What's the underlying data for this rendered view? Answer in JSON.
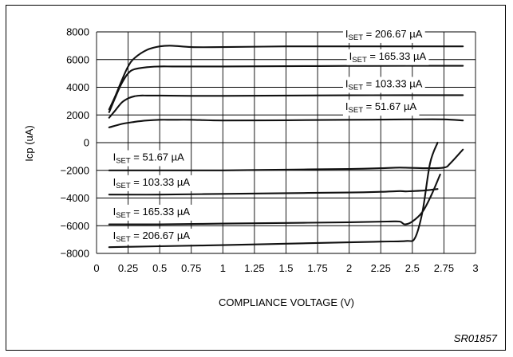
{
  "chart_data": {
    "type": "line",
    "title": "",
    "xlabel": "COMPLIANCE VOLTAGE (V)",
    "ylabel": "Icp (uA)",
    "xlim": [
      0,
      3
    ],
    "ylim": [
      -8000,
      8000
    ],
    "x_ticks": [
      "0",
      "0.25",
      "0.5",
      "0.75",
      "1",
      "1.25",
      "1.5",
      "1.75",
      "2",
      "2.25",
      "2.5",
      "2.75",
      "3"
    ],
    "y_ticks": [
      "8000",
      "6000",
      "4000",
      "2000",
      "0",
      "−2000",
      "−4000",
      "−6000",
      "−8000"
    ],
    "grid": true,
    "figure_code": "SR01857",
    "series": [
      {
        "name": "ISET = 206.67 µA",
        "x": [
          0.1,
          0.15,
          0.2,
          0.25,
          0.3,
          0.4,
          0.5,
          0.6,
          0.75,
          1.0,
          1.5,
          2.0,
          2.5,
          2.9
        ],
        "y": [
          2400,
          3400,
          4500,
          5500,
          6100,
          6700,
          6950,
          7000,
          6900,
          6900,
          6950,
          6950,
          6950,
          6950
        ]
      },
      {
        "name": "ISET = 165.33 µA",
        "x": [
          0.1,
          0.15,
          0.2,
          0.25,
          0.3,
          0.4,
          0.5,
          0.6,
          0.75,
          1.0,
          1.5,
          2.0,
          2.5,
          2.9
        ],
        "y": [
          2200,
          3300,
          4300,
          5000,
          5300,
          5450,
          5500,
          5500,
          5500,
          5500,
          5520,
          5540,
          5550,
          5550
        ]
      },
      {
        "name": "ISET = 103.33 µA",
        "x": [
          0.1,
          0.15,
          0.2,
          0.25,
          0.3,
          0.35,
          0.4,
          0.5,
          0.75,
          1.0,
          1.5,
          2.0,
          2.5,
          2.9
        ],
        "y": [
          1800,
          2350,
          2900,
          3200,
          3350,
          3400,
          3400,
          3400,
          3380,
          3380,
          3400,
          3420,
          3430,
          3430
        ]
      },
      {
        "name": "ISET = 51.67 µA",
        "x": [
          0.1,
          0.2,
          0.3,
          0.4,
          0.5,
          0.6,
          0.75,
          1.0,
          1.5,
          2.0,
          2.5,
          2.75,
          2.9
        ],
        "y": [
          1100,
          1350,
          1500,
          1600,
          1650,
          1650,
          1650,
          1600,
          1620,
          1650,
          1680,
          1680,
          1600
        ]
      },
      {
        "name": "ISET = 51.67 µA",
        "x": [
          0.1,
          0.5,
          1.0,
          1.5,
          2.0,
          2.25,
          2.4,
          2.6,
          2.75,
          2.8,
          2.9
        ],
        "y": [
          -2000,
          -2000,
          -2000,
          -1950,
          -1900,
          -1850,
          -1800,
          -1850,
          -1800,
          -1500,
          -500
        ]
      },
      {
        "name": "ISET = 103.33 µA",
        "x": [
          0.1,
          0.5,
          1.0,
          1.5,
          2.0,
          2.25,
          2.4,
          2.45,
          2.5,
          2.6,
          2.7
        ],
        "y": [
          -3750,
          -3750,
          -3700,
          -3650,
          -3600,
          -3550,
          -3500,
          -3520,
          -3500,
          -3450,
          -3350
        ]
      },
      {
        "name": "ISET = 165.33 µA",
        "x": [
          0.1,
          0.5,
          1.0,
          1.5,
          2.0,
          2.3,
          2.4,
          2.44,
          2.5,
          2.58,
          2.65,
          2.72
        ],
        "y": [
          -5900,
          -5900,
          -5850,
          -5800,
          -5750,
          -5700,
          -5700,
          -5900,
          -5700,
          -5000,
          -3800,
          -2300
        ]
      },
      {
        "name": "ISET = 206.67 µA",
        "x": [
          0.1,
          0.25,
          0.5,
          1.0,
          1.5,
          2.0,
          2.25,
          2.45,
          2.52,
          2.58,
          2.64,
          2.7
        ],
        "y": [
          -7550,
          -7520,
          -7480,
          -7400,
          -7300,
          -7200,
          -7150,
          -7100,
          -6900,
          -5000,
          -1500,
          0
        ]
      }
    ],
    "annotations": [
      {
        "main": "I",
        "sub": "SET",
        "rest": " = 206.67 µA",
        "at": [
          1.97,
          7600
        ]
      },
      {
        "main": "I",
        "sub": "SET",
        "rest": " = 165.33 µA",
        "at": [
          2.0,
          6000
        ]
      },
      {
        "main": "I",
        "sub": "SET",
        "rest": " = 103.33 µA",
        "at": [
          1.97,
          4000
        ]
      },
      {
        "main": "I",
        "sub": "SET",
        "rest": " = 51.67 µA",
        "at": [
          1.97,
          2350
        ]
      },
      {
        "main": "I",
        "sub": "SET",
        "rest": " = 51.67 µA",
        "at": [
          0.13,
          -1300
        ]
      },
      {
        "main": "I",
        "sub": "SET",
        "rest": " = 103.33 µA",
        "at": [
          0.13,
          -3100
        ]
      },
      {
        "main": "I",
        "sub": "SET",
        "rest": " = 165.33 µA",
        "at": [
          0.13,
          -5230
        ]
      },
      {
        "main": "I",
        "sub": "SET",
        "rest": " = 206.67 µA",
        "at": [
          0.13,
          -6960
        ]
      }
    ]
  }
}
